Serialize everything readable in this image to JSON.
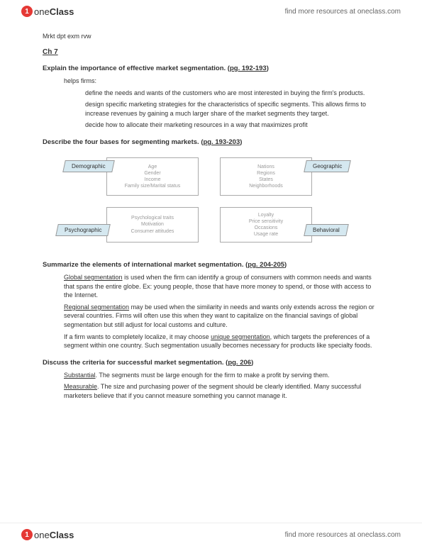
{
  "brand": {
    "icon_letter": "1",
    "name_one": "one",
    "name_class": "Class",
    "tagline": "find more resources at oneclass.com"
  },
  "doc": {
    "title": "Mrkt dpt exm rvw",
    "chapter": "Ch 7",
    "sections": {
      "s1": {
        "head_pre": "Explain the importance of effective market segmentation. (",
        "pg": "pg. 192-193",
        "head_post": ")",
        "p1": "helps firms:",
        "p2": "define the needs and wants of the customers who are most interested in buying the firm's products.",
        "p3": "design specific marketing strategies for the characteristics of specific segments. This allows firms to increase revenues by gaining a much larger share of the market segments they target.",
        "p4": "decide how to allocate their marketing resources in a way that maximizes profit"
      },
      "s2": {
        "head_pre": "Describe the four bases for segmenting markets. (",
        "pg": "pg. 193-203",
        "head_post": ")"
      },
      "s3": {
        "head_pre": "Summarize the elements of international market segmentation. (",
        "pg": "pg. 204-205",
        "head_post": ")",
        "p1a": "Global segmentation",
        "p1b": " is used when the firm can identify a group of consumers with common needs and wants that spans the entire globe. Ex: young people, those that have more money to spend, or those with access to the Internet.",
        "p2a": "Regional segmentation",
        "p2b": " may be used when the similarity in needs and wants only extends across the region or several countries. Firms will often use this when they want to capitalize on the financial savings of global segmentation but still adjust for local customs and culture.",
        "p3a": "If a firm wants to completely localize, it may choose ",
        "p3b": "unique segmentation",
        "p3c": ", which targets the preferences of a segment within one country. Such segmentation usually becomes necessary for products like specialty foods."
      },
      "s4": {
        "head_pre": "Discuss the criteria for successful market segmentation",
        "pg": "pg. 206",
        "head_post": ")",
        "p1a": "Substantial",
        "p1b": ". The segments must be large enough for the firm to make a profit by serving them.",
        "p2a": "Measurable",
        "p2b": ". The size and purchasing power of the segment should be clearly identified. Many successful marketers believe that if you cannot measure something you cannot manage it."
      }
    },
    "diagram": {
      "labels": {
        "tl": "Demographic",
        "tr": "Geographic",
        "bl": "Psychographic",
        "br": "Behavioral"
      },
      "boxes": {
        "tl": "Age\nGender\nIncome\nFamily size/Marital status",
        "tr": "Nations\nRegions\nStates\nNeighborhoods",
        "bl": "Psychological traits\nMotivation\nConsumer attitudes",
        "br": "Loyalty\nPrice sensitivity\nOccasions\nUsage rate"
      },
      "colors": {
        "label_bg": "#d5e8f0",
        "box_border": "#aaaaaa",
        "text_muted": "#999999"
      }
    }
  }
}
